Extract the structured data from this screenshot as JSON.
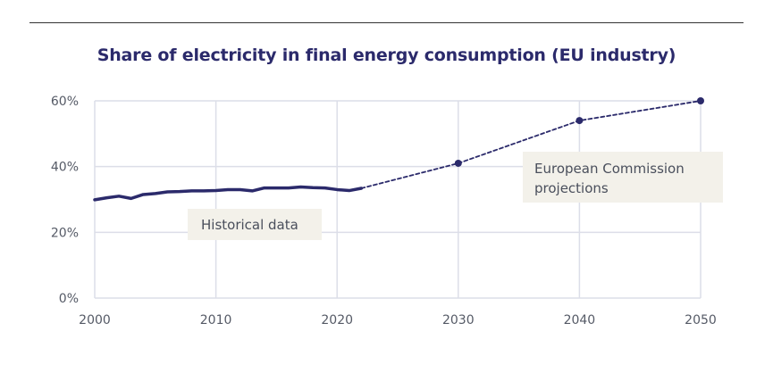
{
  "chart_data": {
    "type": "line",
    "title": "Share of electricity in final energy consumption (EU industry)",
    "xlabel": "",
    "ylabel": "",
    "xlim": [
      2000,
      2050
    ],
    "ylim": [
      0,
      60
    ],
    "x_ticks": [
      "2000",
      "2010",
      "2020",
      "2030",
      "2040",
      "2050"
    ],
    "y_ticks": [
      "0%",
      "20%",
      "40%",
      "60%"
    ],
    "grid": true,
    "series": [
      {
        "style": "solid",
        "color": "#2b2a6b",
        "x": [
          2000,
          2001,
          2002,
          2003,
          2004,
          2005,
          2006,
          2007,
          2008,
          2009,
          2010,
          2011,
          2012,
          2013,
          2014,
          2015,
          2016,
          2017,
          2018,
          2019,
          2020,
          2021,
          2022
        ],
        "y": [
          29.9,
          30.5,
          31.0,
          30.3,
          31.5,
          31.8,
          32.3,
          32.4,
          32.6,
          32.6,
          32.7,
          33.0,
          33.0,
          32.6,
          33.5,
          33.5,
          33.5,
          33.8,
          33.6,
          33.5,
          33.0,
          32.7,
          33.4
        ]
      },
      {
        "style": "dashed",
        "color": "#2b2a6b",
        "x": [
          2022,
          2030,
          2040,
          2050
        ],
        "y": [
          33.4,
          41,
          54,
          60
        ],
        "markers": [
          2030,
          2040,
          2050
        ]
      }
    ],
    "annotations": [
      {
        "text": "Historical data",
        "x": 2013,
        "y": 22
      },
      {
        "text_lines": [
          "European Commission",
          "projections"
        ],
        "x": 2041,
        "y": 40
      }
    ]
  }
}
